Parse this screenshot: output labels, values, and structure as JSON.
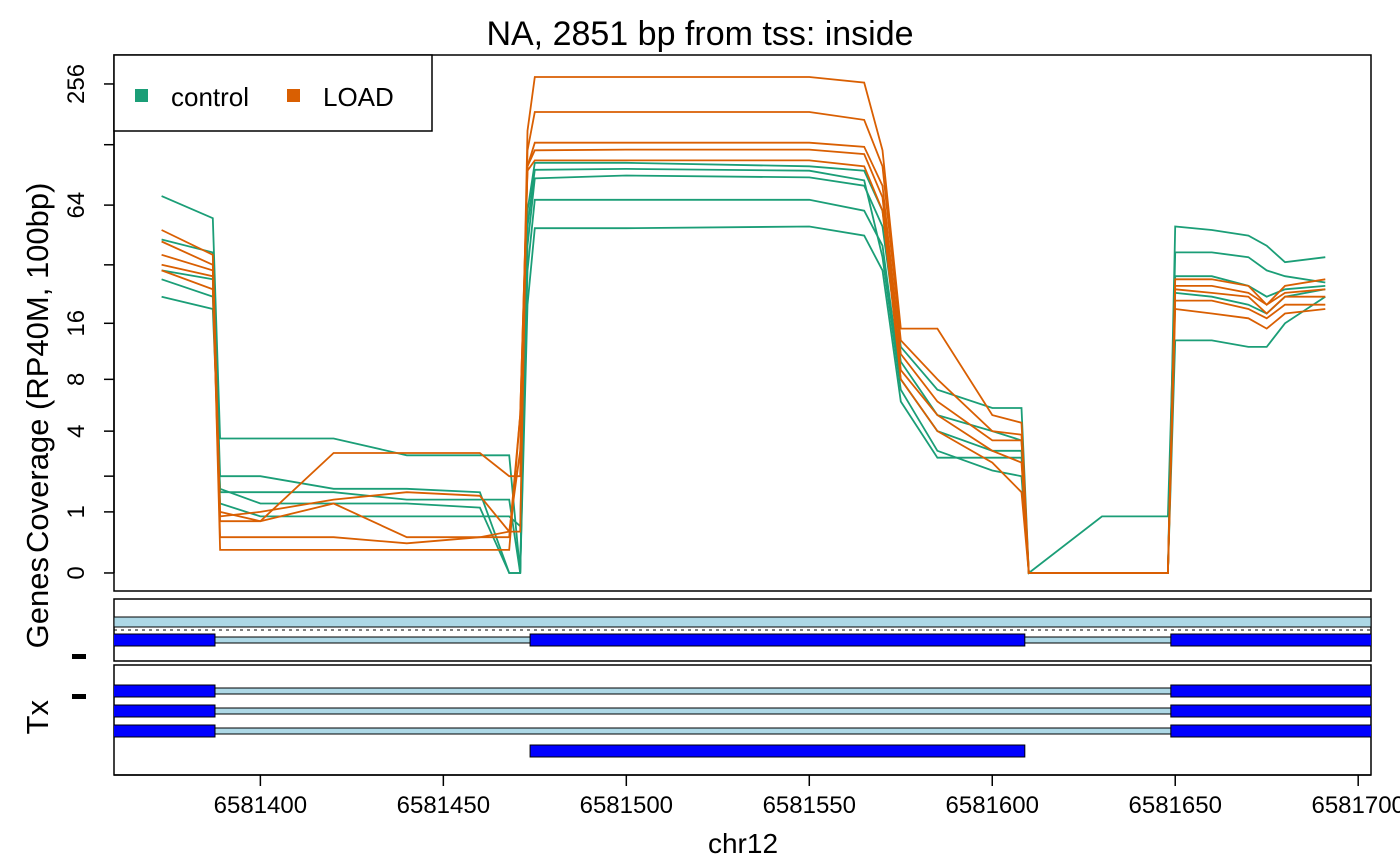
{
  "chart_data": {
    "type": "line",
    "title": "NA, 2851 bp from tss: inside",
    "x_label": "chr12",
    "y_label": "Coverage (RP40M, 100bp)",
    "yscale": "log2p1",
    "xlim": [
      6581360,
      6581703.5
    ],
    "xticks": [
      6581400,
      6581450,
      6581500,
      6581550,
      6581600,
      6581650,
      6581700
    ],
    "ylim": [
      -0.185,
      356
    ],
    "yticks": [
      0,
      1,
      4,
      8,
      16,
      64,
      256
    ],
    "yticks_unlabeled": [
      2,
      32,
      128
    ],
    "legend": "top-left",
    "x": [
      6581373,
      6581387,
      6581389,
      6581400,
      6581420,
      6581440,
      6581460,
      6581468,
      6581471,
      6581473,
      6581475,
      6581500,
      6581550,
      6581565,
      6581570,
      6581575,
      6581585,
      6581600,
      6581608,
      6581610,
      6581630,
      6581648,
      6581650,
      6581660,
      6581670,
      6581675,
      6581680,
      6581691
    ],
    "groups": [
      {
        "name": "control",
        "color": "#1b9e77"
      },
      {
        "name": "LOAD",
        "color": "#d95f02"
      }
    ],
    "series": [
      {
        "group": 0,
        "values": [
          71,
          55,
          3.6,
          3.6,
          3.6,
          2.8,
          2.8,
          2.8,
          0,
          60,
          104,
          104,
          100,
          95,
          60,
          12,
          7,
          5.5,
          5.5,
          0,
          0,
          0,
          50,
          48,
          45,
          40,
          33,
          35
        ]
      },
      {
        "group": 0,
        "values": [
          43,
          37,
          2.0,
          2.0,
          1.6,
          1.6,
          1.5,
          0,
          0,
          40,
          87,
          90,
          88,
          80,
          50,
          10,
          5,
          4,
          3.5,
          0,
          0,
          0,
          37,
          37,
          35,
          30,
          28,
          26
        ]
      },
      {
        "group": 0,
        "values": [
          27,
          22,
          1.5,
          1.5,
          1.5,
          1.3,
          1.3,
          1.3,
          0,
          30,
          68,
          68,
          68,
          60,
          40,
          8,
          4,
          3,
          3,
          0,
          0.9,
          0.9,
          28,
          28,
          25,
          22,
          24,
          25
        ]
      },
      {
        "group": 0,
        "values": [
          22,
          19,
          1.6,
          1.2,
          1.2,
          1.2,
          1.1,
          0,
          0,
          20,
          49,
          49,
          50,
          45,
          30,
          6,
          2.7,
          2.7,
          2.7,
          0,
          0,
          0,
          23,
          22,
          20,
          18,
          22,
          24
        ]
      },
      {
        "group": 0,
        "values": [
          30,
          27,
          1.2,
          0.9,
          0.9,
          0.9,
          0.9,
          0.9,
          0.7,
          50,
          96,
          97,
          95,
          85,
          35,
          7,
          3,
          2.2,
          2,
          0,
          0,
          0,
          13,
          13,
          12,
          12,
          16,
          22
        ]
      },
      {
        "group": 1,
        "values": [
          48,
          36,
          1.0,
          0.8,
          2.9,
          2.9,
          2.9,
          2.0,
          2.0,
          150,
          277,
          277,
          277,
          260,
          120,
          15,
          15,
          5,
          4.5,
          0,
          0,
          0,
          27,
          27,
          25,
          20,
          25,
          27
        ]
      },
      {
        "group": 1,
        "values": [
          42,
          32,
          0.9,
          1.0,
          1.3,
          1.5,
          1.4,
          0.6,
          0.6,
          120,
          186,
          186,
          186,
          170,
          100,
          13,
          8,
          4,
          3.8,
          0,
          0,
          0,
          25,
          25,
          23,
          20,
          23,
          24
        ]
      },
      {
        "group": 1,
        "values": [
          36,
          30,
          0.5,
          0.5,
          0.5,
          0.4,
          0.5,
          0.6,
          3,
          100,
          131,
          131,
          131,
          125,
          80,
          11,
          6,
          3.5,
          3.5,
          0,
          0,
          0,
          24,
          23,
          22,
          18,
          22,
          22
        ]
      },
      {
        "group": 1,
        "values": [
          32,
          28,
          0.3,
          0.3,
          0.3,
          0.3,
          0.3,
          0.3,
          5,
          100,
          120,
          121,
          121,
          115,
          70,
          9,
          5,
          3,
          2.5,
          0,
          0,
          0,
          21,
          21,
          19,
          17,
          20,
          20
        ]
      },
      {
        "group": 1,
        "values": [
          30,
          24,
          0.8,
          0.8,
          1.2,
          0.5,
          0.5,
          0.5,
          5,
          95,
          107,
          107,
          107,
          100,
          60,
          8,
          4,
          2.5,
          1.5,
          0,
          0,
          0,
          19,
          18,
          17,
          15,
          18,
          19
        ]
      }
    ],
    "tracks": [
      {
        "name": "Genes",
        "transcripts": [
          {
            "exons": [
              [
                6581340,
                6581387.6
              ],
              [
                6581473.7,
                6581608.9
              ],
              [
                6581648.8,
                6581720
              ]
            ]
          }
        ]
      },
      {
        "name": "Tx",
        "transcripts": [
          {
            "exons": [
              [
                6581340,
                6581387.6
              ],
              [
                6581648.8,
                6581720
              ]
            ]
          },
          {
            "exons": [
              [
                6581340,
                6581387.6
              ],
              [
                6581648.8,
                6581720
              ]
            ]
          },
          {
            "exons": [
              [
                6581340,
                6581387.6
              ],
              [
                6581648.8,
                6581720
              ]
            ]
          },
          {
            "exons": [
              [
                6581473.7,
                6581608.9
              ]
            ]
          }
        ]
      }
    ]
  }
}
